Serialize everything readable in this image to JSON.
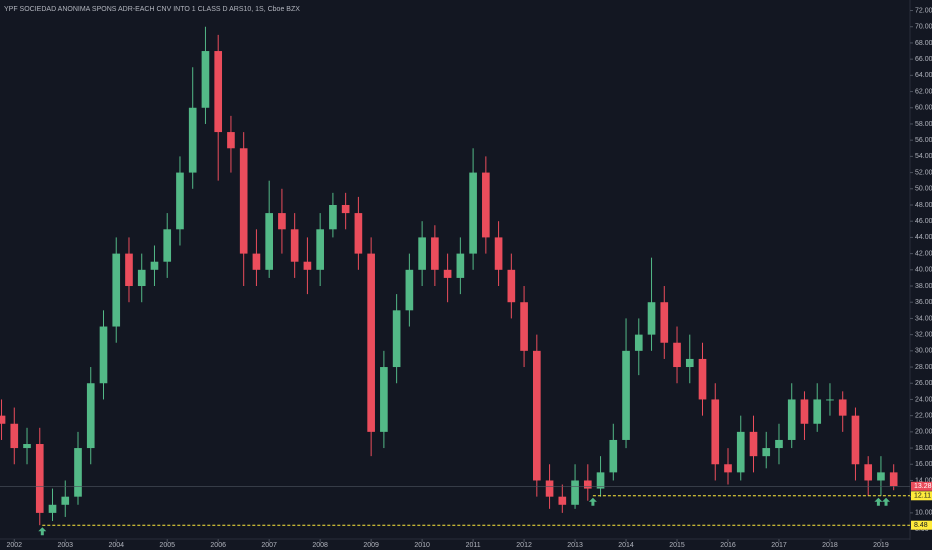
{
  "chart_data": {
    "type": "candlestick",
    "title": "YPF SOCIEDAD ANONIMA SPONS ADR-EACH CNV INTO 1 CLASS D ARS10, 1S, Cboe BZX",
    "up_color": "#53b987",
    "down_color": "#eb4d5c",
    "xlim": [
      2001.72,
      2019.57
    ],
    "xticks": [
      2002,
      2003,
      2004,
      2005,
      2006,
      2007,
      2008,
      2009,
      2010,
      2011,
      2012,
      2013,
      2014,
      2015,
      2016,
      2017,
      2018,
      2019
    ],
    "ylim": [
      6.9,
      73.3
    ],
    "yticks": [
      {
        "value": 8,
        "label": "8.00"
      },
      {
        "value": 10,
        "label": "10.00"
      },
      {
        "value": 12,
        "label": "12.00"
      },
      {
        "value": 14,
        "label": "14.00"
      },
      {
        "value": 16,
        "label": "16.00"
      },
      {
        "value": 18,
        "label": "18.00"
      },
      {
        "value": 20,
        "label": "20.00"
      },
      {
        "value": 22,
        "label": "22.00"
      },
      {
        "value": 24,
        "label": "24.00"
      },
      {
        "value": 26,
        "label": "26.00"
      },
      {
        "value": 28,
        "label": "28.00"
      },
      {
        "value": 30,
        "label": "30.00"
      },
      {
        "value": 32,
        "label": "32.00"
      },
      {
        "value": 34,
        "label": "34.00"
      },
      {
        "value": 36,
        "label": "36.00"
      },
      {
        "value": 38,
        "label": "38.00"
      },
      {
        "value": 40,
        "label": "40.00"
      },
      {
        "value": 42,
        "label": "42.00"
      },
      {
        "value": 44,
        "label": "44.00"
      },
      {
        "value": 46,
        "label": "46.00"
      },
      {
        "value": 48,
        "label": "48.00"
      },
      {
        "value": 50,
        "label": "50.00"
      },
      {
        "value": 52,
        "label": "52.00"
      },
      {
        "value": 54,
        "label": "54.00"
      },
      {
        "value": 56,
        "label": "56.00"
      },
      {
        "value": 58,
        "label": "58.00"
      },
      {
        "value": 60,
        "label": "60.00"
      },
      {
        "value": 62,
        "label": "62.00"
      },
      {
        "value": 64,
        "label": "64.00"
      },
      {
        "value": 66,
        "label": "66.00"
      },
      {
        "value": 68,
        "label": "68.00"
      },
      {
        "value": 70,
        "label": "70.00"
      },
      {
        "value": 72,
        "label": "72.00"
      }
    ],
    "x": [
      2001.75,
      2002,
      2002.25,
      2002.5,
      2002.75,
      2003,
      2003.25,
      2003.5,
      2003.75,
      2004,
      2004.25,
      2004.5,
      2004.75,
      2005,
      2005.25,
      2005.5,
      2005.75,
      2006,
      2006.25,
      2006.5,
      2006.75,
      2007,
      2007.25,
      2007.5,
      2007.75,
      2008,
      2008.25,
      2008.5,
      2008.75,
      2009,
      2009.25,
      2009.5,
      2009.75,
      2010,
      2010.25,
      2010.5,
      2010.75,
      2011,
      2011.25,
      2011.5,
      2011.75,
      2012,
      2012.25,
      2012.5,
      2012.75,
      2013,
      2013.25,
      2013.5,
      2013.75,
      2014,
      2014.25,
      2014.5,
      2014.75,
      2015,
      2015.25,
      2015.5,
      2015.75,
      2016,
      2016.25,
      2016.5,
      2016.75,
      2017,
      2017.25,
      2017.5,
      2017.75,
      2018,
      2018.25,
      2018.5,
      2018.75,
      2019,
      2019.25
    ],
    "open": [
      22,
      21,
      18,
      18.5,
      10,
      11,
      12,
      18,
      26,
      33,
      42,
      38,
      40,
      41,
      45,
      52,
      60,
      67,
      57,
      55,
      42,
      40,
      47,
      45,
      41,
      40,
      45,
      48,
      47,
      42,
      20,
      28,
      35,
      40,
      44,
      40,
      39,
      42,
      52,
      44,
      40,
      36,
      30,
      14,
      12,
      11,
      14,
      13,
      15,
      19,
      30,
      32,
      36,
      31,
      28,
      29,
      24,
      16,
      15,
      20,
      17,
      18,
      19,
      24,
      21,
      24,
      24,
      22,
      16,
      14,
      15
    ],
    "high": [
      24,
      23,
      20.5,
      20.5,
      13,
      14,
      20,
      28,
      35,
      44,
      44,
      42,
      43,
      47,
      54,
      65,
      70,
      69,
      59,
      57,
      45,
      51,
      50,
      47,
      44,
      47,
      49.5,
      49.5,
      49,
      44,
      30,
      37,
      42,
      46,
      45.5,
      42,
      44,
      55,
      54,
      46,
      42,
      38,
      32,
      16,
      13.5,
      16,
      16,
      17,
      21,
      34,
      34,
      41.5,
      38,
      33,
      32,
      31,
      26,
      18,
      22,
      22,
      20,
      21,
      26,
      25,
      26,
      26,
      25,
      23,
      17,
      17,
      16
    ],
    "low": [
      19,
      16,
      16,
      8.48,
      9,
      9.5,
      11,
      16,
      24,
      31,
      36,
      36,
      38,
      39,
      43,
      50,
      58,
      51,
      52,
      38,
      38,
      39,
      42,
      39,
      37,
      38,
      44,
      45,
      40,
      17,
      18,
      26,
      33,
      38,
      38,
      36,
      37,
      40,
      42,
      38,
      34,
      28,
      12,
      10.5,
      10,
      10.5,
      11.5,
      12,
      14,
      18,
      27,
      30,
      29,
      26,
      26,
      22,
      14,
      13.5,
      14,
      15,
      15.5,
      16,
      18,
      19,
      20,
      22,
      20,
      14,
      12.1,
      12.1,
      12.8
    ],
    "close": [
      21,
      18,
      18.5,
      10,
      11,
      12,
      18,
      26,
      33,
      42,
      38,
      40,
      41,
      45,
      52,
      60,
      67,
      57,
      55,
      42,
      40,
      47,
      45,
      41,
      40,
      45,
      48,
      47,
      42,
      20,
      28,
      35,
      40,
      44,
      40,
      39,
      42,
      52,
      44,
      40,
      36,
      30,
      14,
      12,
      11,
      14,
      13,
      15,
      19,
      30,
      32,
      36,
      31,
      28,
      29,
      24,
      16,
      15,
      20,
      17,
      18,
      19,
      24,
      21,
      24,
      24,
      22,
      16,
      14,
      15,
      13.28
    ],
    "levels": [
      {
        "value": 12.11,
        "label": "12.11",
        "start": 2013.35,
        "color": "#ffeb3b"
      },
      {
        "value": 8.48,
        "label": "8.48",
        "start": 2002.55,
        "color": "#ffeb3b"
      }
    ],
    "last_price": {
      "value": 13.28,
      "label": "13.28",
      "color": "#eb4d5c"
    },
    "markers": {
      "color": "#53b987",
      "x": [
        2002.55,
        2013.35,
        2018.95,
        2019.1
      ],
      "y": [
        8.48,
        12.11,
        12.11,
        12.11
      ]
    }
  }
}
